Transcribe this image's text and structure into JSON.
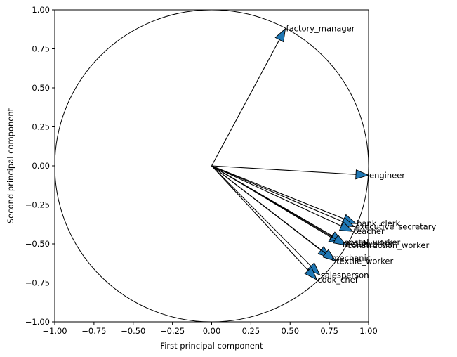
{
  "chart_data": {
    "type": "scatter",
    "title": "",
    "xlabel": "First principal component",
    "ylabel": "Second principal component",
    "xlim": [
      -1.0,
      1.0
    ],
    "ylim": [
      -1.0,
      1.0
    ],
    "xticks": [
      "−1.00",
      "−0.75",
      "−0.50",
      "−0.25",
      "0.00",
      "0.25",
      "0.50",
      "0.75",
      "1.00"
    ],
    "yticks": [
      "−1.00",
      "−0.75",
      "−0.50",
      "−0.25",
      "0.00",
      "0.25",
      "0.50",
      "0.75",
      "1.00"
    ],
    "grid": false,
    "unit_circle": true,
    "arrow_color": "#1f77b4",
    "points": [
      {
        "label": "factory_manager",
        "x": 0.47,
        "y": 0.88
      },
      {
        "label": "engineer",
        "x": 1.0,
        "y": -0.06
      },
      {
        "label": "bank_clerk",
        "x": 0.92,
        "y": -0.37
      },
      {
        "label": "executive_secretary",
        "x": 0.91,
        "y": -0.39
      },
      {
        "label": "teacher",
        "x": 0.9,
        "y": -0.42
      },
      {
        "label": "metalworker",
        "x": 0.83,
        "y": -0.5
      },
      {
        "label": "postal_worker",
        "x": 0.84,
        "y": -0.49
      },
      {
        "label": "construction_worker",
        "x": 0.86,
        "y": -0.51
      },
      {
        "label": "mechanic",
        "x": 0.76,
        "y": -0.59
      },
      {
        "label": "textile_worker",
        "x": 0.79,
        "y": -0.61
      },
      {
        "label": "salesperson",
        "x": 0.69,
        "y": -0.7
      },
      {
        "label": "cook_chef",
        "x": 0.67,
        "y": -0.73
      }
    ]
  }
}
